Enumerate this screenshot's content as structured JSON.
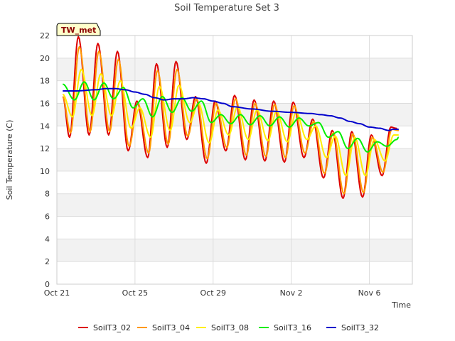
{
  "chart_data": {
    "type": "line",
    "title": "Soil Temperature Set 3",
    "site_label": "TW_met",
    "xlabel": "Time",
    "ylabel": "Soil Temperature (C)",
    "ylim": [
      0,
      22
    ],
    "y_ticks": [
      0,
      2,
      4,
      6,
      8,
      10,
      12,
      14,
      16,
      18,
      20,
      22
    ],
    "x_range_days": [
      0,
      18.2
    ],
    "x_ticks": [
      {
        "day": 0,
        "label": "Oct 21"
      },
      {
        "day": 4,
        "label": "Oct 25"
      },
      {
        "day": 8,
        "label": "Oct 29"
      },
      {
        "day": 12,
        "label": "Nov 2"
      },
      {
        "day": 16,
        "label": "Nov 6"
      }
    ],
    "grid": true,
    "banded_background": true,
    "legend_position": "bottom",
    "series": [
      {
        "name": "SoilT3_02",
        "color": "#dd0000",
        "x": [
          0.3,
          0.65,
          1.1,
          1.65,
          2.1,
          2.65,
          3.1,
          3.65,
          4.1,
          4.65,
          5.1,
          5.65,
          6.1,
          6.65,
          7.1,
          7.65,
          8.1,
          8.65,
          9.1,
          9.65,
          10.1,
          10.65,
          11.1,
          11.65,
          12.1,
          12.65,
          13.1,
          13.65,
          14.1,
          14.65,
          15.1,
          15.65,
          16.1,
          16.65,
          17.1,
          17.35,
          17.5
        ],
        "y": [
          16.6,
          13.0,
          21.9,
          13.2,
          21.3,
          13.2,
          20.6,
          11.8,
          16.2,
          11.2,
          19.5,
          12.1,
          19.7,
          12.8,
          16.6,
          10.7,
          16.2,
          11.8,
          16.7,
          11.0,
          16.3,
          10.9,
          16.2,
          10.8,
          16.1,
          11.2,
          14.6,
          9.4,
          13.6,
          7.6,
          13.5,
          7.7,
          13.2,
          9.6,
          13.9,
          13.8,
          13.6
        ]
      },
      {
        "name": "SoilT3_04",
        "color": "#ff9900",
        "x": [
          0.3,
          0.7,
          1.15,
          1.7,
          2.15,
          2.7,
          3.15,
          3.7,
          4.15,
          4.7,
          5.15,
          5.7,
          6.15,
          6.7,
          7.15,
          7.7,
          8.15,
          8.7,
          9.15,
          9.7,
          10.15,
          10.7,
          11.15,
          11.7,
          12.15,
          12.7,
          13.15,
          13.7,
          14.15,
          14.7,
          15.15,
          15.7,
          16.15,
          16.7,
          17.15,
          17.5
        ],
        "y": [
          16.6,
          13.4,
          21.0,
          13.5,
          20.6,
          13.5,
          19.9,
          12.2,
          16.0,
          11.6,
          18.9,
          12.4,
          19.0,
          13.1,
          16.4,
          11.1,
          16.0,
          12.1,
          16.4,
          11.4,
          16.0,
          11.3,
          15.9,
          11.2,
          15.8,
          11.6,
          14.4,
          9.8,
          13.4,
          8.0,
          13.3,
          8.1,
          13.0,
          9.9,
          13.7,
          13.6
        ]
      },
      {
        "name": "SoilT3_08",
        "color": "#ffee00",
        "x": [
          0.3,
          0.8,
          1.25,
          1.8,
          2.25,
          2.8,
          3.25,
          3.8,
          4.25,
          4.8,
          5.25,
          5.8,
          6.25,
          6.8,
          7.25,
          7.8,
          8.25,
          8.8,
          9.25,
          9.8,
          10.25,
          10.8,
          11.25,
          11.8,
          12.25,
          12.8,
          13.25,
          13.8,
          14.25,
          14.8,
          15.25,
          15.8,
          16.25,
          16.8,
          17.25,
          17.5
        ],
        "y": [
          16.8,
          14.8,
          19.0,
          14.9,
          18.6,
          14.9,
          18.0,
          13.8,
          15.6,
          13.0,
          17.5,
          13.6,
          17.6,
          14.3,
          16.0,
          12.5,
          15.4,
          13.2,
          15.7,
          12.8,
          15.4,
          12.7,
          15.3,
          12.6,
          15.2,
          12.8,
          14.0,
          11.2,
          13.1,
          9.6,
          13.0,
          9.6,
          12.8,
          10.9,
          13.2,
          13.2
        ]
      },
      {
        "name": "SoilT3_16",
        "color": "#00ee00",
        "x": [
          0.3,
          0.9,
          1.4,
          1.9,
          2.4,
          2.9,
          3.4,
          3.9,
          4.4,
          4.9,
          5.4,
          5.9,
          6.4,
          6.9,
          7.4,
          7.9,
          8.4,
          8.9,
          9.4,
          9.9,
          10.4,
          10.9,
          11.4,
          11.9,
          12.4,
          12.9,
          13.4,
          13.9,
          14.4,
          14.9,
          15.4,
          15.9,
          16.4,
          16.9,
          17.4,
          17.5
        ],
        "y": [
          17.7,
          16.3,
          17.9,
          16.3,
          17.8,
          16.4,
          17.4,
          15.6,
          16.4,
          14.8,
          16.6,
          15.2,
          16.5,
          15.3,
          16.2,
          14.3,
          15.0,
          14.2,
          15.0,
          14.1,
          14.9,
          14.0,
          14.8,
          13.9,
          14.7,
          14.0,
          14.3,
          13.0,
          13.5,
          12.0,
          12.9,
          11.7,
          12.6,
          12.2,
          12.8,
          13.0
        ]
      },
      {
        "name": "SoilT3_32",
        "color": "#0000cc",
        "x": [
          0.3,
          1.0,
          2.0,
          2.5,
          3.0,
          3.5,
          4.0,
          4.5,
          5.0,
          5.5,
          6.0,
          6.5,
          7.0,
          7.5,
          8.0,
          8.5,
          9.0,
          10.0,
          11.0,
          12.0,
          13.0,
          13.5,
          14.0,
          14.5,
          15.0,
          15.5,
          16.0,
          16.5,
          17.0,
          17.2,
          17.5
        ],
        "y": [
          17.1,
          17.1,
          17.2,
          17.3,
          17.3,
          17.2,
          17.0,
          16.8,
          16.5,
          16.3,
          16.4,
          16.4,
          16.5,
          16.4,
          16.2,
          16.0,
          15.7,
          15.5,
          15.3,
          15.2,
          15.1,
          15.0,
          14.9,
          14.7,
          14.4,
          14.2,
          13.9,
          13.8,
          13.6,
          13.7,
          13.7
        ]
      }
    ]
  }
}
